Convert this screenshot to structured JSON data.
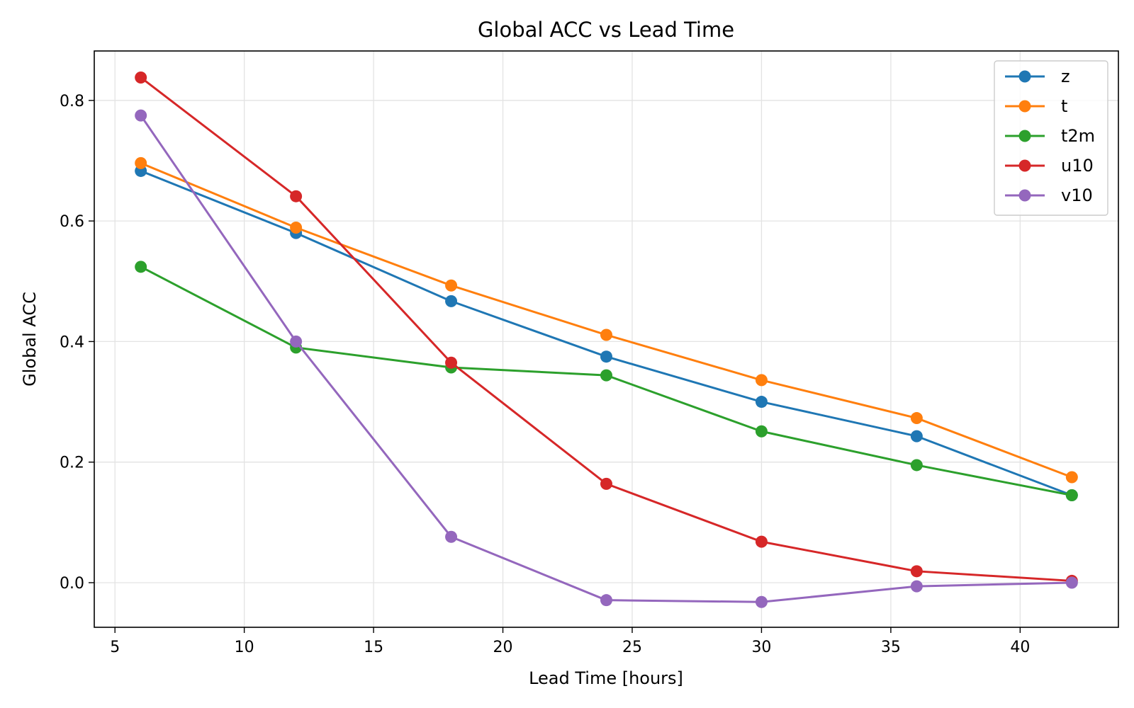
{
  "chart_data": {
    "type": "line",
    "title": "Global ACC vs Lead Time",
    "xlabel": "Lead Time [hours]",
    "ylabel": "Global ACC",
    "x": [
      6,
      12,
      18,
      24,
      30,
      36,
      42
    ],
    "xlim": [
      4.2,
      43.8
    ],
    "ylim": [
      -0.074,
      0.882
    ],
    "xticks": [
      5,
      10,
      15,
      20,
      25,
      30,
      35,
      40
    ],
    "yticks": [
      0.0,
      0.2,
      0.4,
      0.6,
      0.8
    ],
    "xtick_labels": [
      "5",
      "10",
      "15",
      "20",
      "25",
      "30",
      "35",
      "40"
    ],
    "ytick_labels": [
      "0.0",
      "0.2",
      "0.4",
      "0.6",
      "0.8"
    ],
    "grid": true,
    "legend_position": "upper right",
    "series": [
      {
        "name": "z",
        "color": "#1f77b4",
        "values": [
          0.683,
          0.58,
          0.467,
          0.375,
          0.3,
          0.243,
          0.145
        ]
      },
      {
        "name": "t",
        "color": "#ff7f0e",
        "values": [
          0.696,
          0.589,
          0.493,
          0.411,
          0.336,
          0.273,
          0.175
        ]
      },
      {
        "name": "t2m",
        "color": "#2ca02c",
        "values": [
          0.524,
          0.39,
          0.357,
          0.344,
          0.251,
          0.195,
          0.145
        ]
      },
      {
        "name": "u10",
        "color": "#d62728",
        "values": [
          0.838,
          0.641,
          0.365,
          0.164,
          0.068,
          0.019,
          0.003
        ]
      },
      {
        "name": "v10",
        "color": "#9467bd",
        "values": [
          0.775,
          0.4,
          0.076,
          -0.029,
          -0.032,
          -0.006,
          0.0
        ]
      }
    ]
  }
}
